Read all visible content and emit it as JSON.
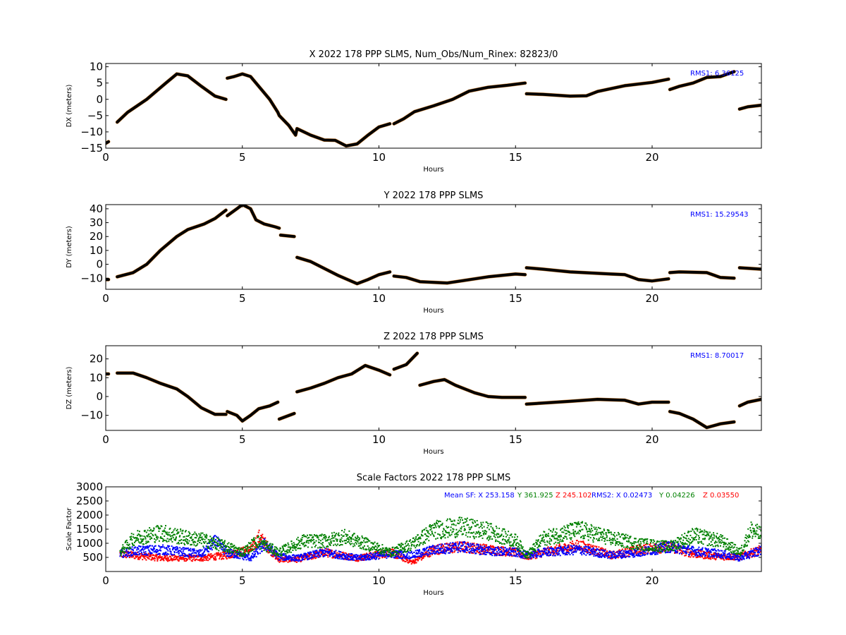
{
  "chart_data": [
    {
      "type": "scatter",
      "title": "X 2022 178 PPP  SLMS, Num_Obs/Num_Rinex: 82823/0",
      "xlabel": "Hours",
      "ylabel": "DX (meters)",
      "xlim": [
        0,
        24
      ],
      "ylim": [
        -15,
        11
      ],
      "xticks": [
        0,
        5,
        10,
        15,
        20
      ],
      "yticks": [
        -15,
        -10,
        -5,
        0,
        5,
        10
      ],
      "annotations": [
        {
          "text": "RMS1:  6.36125",
          "color": "#0000ff",
          "position": "top-right"
        }
      ],
      "series_colors": {
        "points": "#000000",
        "error": "#cc6600"
      },
      "segments": [
        [
          [
            0,
            -13.5
          ],
          [
            0.1,
            -13.0
          ]
        ],
        [
          [
            0.42,
            -7
          ],
          [
            0.8,
            -4
          ],
          [
            1.5,
            0
          ],
          [
            2.2,
            5
          ],
          [
            2.6,
            7.8
          ],
          [
            3.0,
            7.2
          ],
          [
            3.5,
            4
          ],
          [
            4.0,
            1
          ],
          [
            4.4,
            0
          ]
        ],
        [
          [
            4.45,
            6.5
          ],
          [
            4.7,
            7
          ],
          [
            5.0,
            7.8
          ],
          [
            5.3,
            7
          ],
          [
            5.6,
            4
          ],
          [
            6.0,
            0
          ],
          [
            6.3,
            -4
          ],
          [
            6.35,
            -5
          ],
          [
            6.7,
            -8
          ],
          [
            6.95,
            -11
          ],
          [
            7.0,
            -9
          ],
          [
            7.5,
            -11
          ],
          [
            8.0,
            -12.5
          ],
          [
            8.4,
            -12.6
          ],
          [
            8.8,
            -14.3
          ],
          [
            9.2,
            -13.7
          ],
          [
            9.6,
            -11
          ],
          [
            10.0,
            -8.5
          ],
          [
            10.4,
            -7.5
          ]
        ],
        [
          [
            10.55,
            -7.5
          ],
          [
            10.9,
            -6
          ],
          [
            11.3,
            -3.8
          ],
          [
            12,
            -2
          ],
          [
            12.7,
            0
          ],
          [
            13.3,
            2.5
          ],
          [
            14,
            3.7
          ],
          [
            14.7,
            4.3
          ],
          [
            15.35,
            5
          ]
        ],
        [
          [
            15.4,
            1.7
          ],
          [
            16,
            1.5
          ],
          [
            17,
            1
          ],
          [
            17.6,
            1.1
          ],
          [
            18,
            2.4
          ],
          [
            19,
            4.2
          ],
          [
            20,
            5.2
          ],
          [
            20.6,
            6.2
          ]
        ],
        [
          [
            20.65,
            3
          ],
          [
            21,
            4
          ],
          [
            21.5,
            5
          ],
          [
            22,
            6.7
          ],
          [
            22.5,
            7
          ],
          [
            23,
            8.5
          ]
        ],
        [
          [
            23.2,
            -3
          ],
          [
            23.5,
            -2.3
          ],
          [
            24,
            -1.8
          ]
        ]
      ]
    },
    {
      "type": "scatter",
      "title": "Y 2022 178 PPP  SLMS",
      "xlabel": "Hours",
      "ylabel": "DY (meters)",
      "xlim": [
        0,
        24
      ],
      "ylim": [
        -18,
        43
      ],
      "xticks": [
        0,
        5,
        10,
        15,
        20
      ],
      "yticks": [
        -10,
        0,
        10,
        20,
        30,
        40
      ],
      "annotations": [
        {
          "text": "RMS1: 15.29543",
          "color": "#0000ff",
          "position": "top-right"
        }
      ],
      "series_colors": {
        "points": "#000000",
        "error": "#cc6600"
      },
      "segments": [
        [
          [
            0,
            -11
          ],
          [
            0.1,
            -11
          ]
        ],
        [
          [
            0.42,
            -9
          ],
          [
            1,
            -6
          ],
          [
            1.5,
            0
          ],
          [
            2.0,
            10
          ],
          [
            2.6,
            20
          ],
          [
            3.0,
            25
          ],
          [
            3.6,
            29
          ],
          [
            4.0,
            33
          ],
          [
            4.4,
            39
          ]
        ],
        [
          [
            4.45,
            35
          ],
          [
            4.8,
            40
          ],
          [
            5.0,
            43
          ],
          [
            5.3,
            40
          ],
          [
            5.5,
            32
          ],
          [
            5.8,
            29
          ],
          [
            6.2,
            27
          ],
          [
            6.35,
            26
          ]
        ],
        [
          [
            6.4,
            21
          ],
          [
            6.9,
            20
          ]
        ],
        [
          [
            7.0,
            5
          ],
          [
            7.5,
            2
          ],
          [
            8,
            -3
          ],
          [
            8.5,
            -8
          ],
          [
            9.2,
            -14
          ],
          [
            9.6,
            -11
          ],
          [
            10.0,
            -7.5
          ],
          [
            10.4,
            -5.5
          ]
        ],
        [
          [
            10.55,
            -8.5
          ],
          [
            11,
            -9.5
          ],
          [
            11.5,
            -12.5
          ],
          [
            12.5,
            -13.5
          ],
          [
            13,
            -12
          ],
          [
            14,
            -9
          ],
          [
            15,
            -7
          ],
          [
            15.35,
            -7.5
          ]
        ],
        [
          [
            15.4,
            -2.5
          ],
          [
            16,
            -3.5
          ],
          [
            17,
            -5.5
          ],
          [
            18,
            -6.5
          ],
          [
            18.5,
            -7
          ],
          [
            19,
            -7.5
          ],
          [
            19.5,
            -11
          ],
          [
            20,
            -12
          ],
          [
            20.6,
            -10.5
          ]
        ],
        [
          [
            20.65,
            -6
          ],
          [
            21,
            -5.5
          ],
          [
            22,
            -6
          ],
          [
            22.5,
            -9.5
          ],
          [
            23,
            -10
          ]
        ],
        [
          [
            23.2,
            -2.5
          ],
          [
            24,
            -3.5
          ]
        ]
      ]
    },
    {
      "type": "scatter",
      "title": "Z 2022 178 PPP  SLMS",
      "xlabel": "Hours",
      "ylabel": "DZ (meters)",
      "xlim": [
        0,
        24
      ],
      "ylim": [
        -18,
        27
      ],
      "xticks": [
        0,
        5,
        10,
        15,
        20
      ],
      "yticks": [
        -10,
        0,
        10,
        20
      ],
      "annotations": [
        {
          "text": "RMS1:  8.70017",
          "color": "#0000ff",
          "position": "top-right"
        }
      ],
      "series_colors": {
        "points": "#000000",
        "error": "#cc6600"
      },
      "segments": [
        [
          [
            0,
            12
          ],
          [
            0.1,
            12
          ]
        ],
        [
          [
            0.42,
            12.5
          ],
          [
            1,
            12.5
          ],
          [
            1.5,
            10
          ],
          [
            2.0,
            7
          ],
          [
            2.6,
            4
          ],
          [
            3.0,
            0
          ],
          [
            3.5,
            -6
          ],
          [
            4.0,
            -9.5
          ],
          [
            4.4,
            -9.5
          ]
        ],
        [
          [
            4.45,
            -8
          ],
          [
            4.8,
            -10
          ],
          [
            5.0,
            -13
          ],
          [
            5.3,
            -10
          ],
          [
            5.6,
            -6.5
          ],
          [
            6.0,
            -5
          ],
          [
            6.3,
            -3
          ]
        ],
        [
          [
            6.35,
            -12
          ],
          [
            6.9,
            -9
          ]
        ],
        [
          [
            7.0,
            2.5
          ],
          [
            7.5,
            4.5
          ],
          [
            8,
            7
          ],
          [
            8.5,
            10
          ],
          [
            9.0,
            12
          ],
          [
            9.5,
            16.5
          ],
          [
            10.0,
            14
          ],
          [
            10.4,
            11.5
          ]
        ],
        [
          [
            10.55,
            14.5
          ],
          [
            11,
            17
          ],
          [
            11.4,
            23
          ]
        ],
        [
          [
            11.5,
            6
          ],
          [
            12,
            8
          ],
          [
            12.4,
            9
          ],
          [
            12.8,
            6
          ],
          [
            13.5,
            2
          ],
          [
            14,
            0
          ],
          [
            14.5,
            -0.5
          ],
          [
            15.35,
            -0.5
          ]
        ],
        [
          [
            15.4,
            -4
          ],
          [
            16,
            -3.5
          ],
          [
            17,
            -2.5
          ],
          [
            18,
            -1.5
          ],
          [
            19,
            -2
          ],
          [
            19.5,
            -4
          ],
          [
            20,
            -3
          ],
          [
            20.6,
            -3
          ]
        ],
        [
          [
            20.65,
            -8
          ],
          [
            21,
            -9
          ],
          [
            21.5,
            -12
          ],
          [
            22,
            -16.5
          ],
          [
            22.5,
            -14.5
          ],
          [
            23,
            -13.5
          ]
        ],
        [
          [
            23.2,
            -5
          ],
          [
            23.5,
            -3
          ],
          [
            24,
            -1.5
          ]
        ]
      ]
    },
    {
      "type": "scatter",
      "title": "Scale Factors 2022 178 PPP  SLMS",
      "xlabel": "Hours",
      "ylabel": "Scale Factor",
      "xlim": [
        0,
        24
      ],
      "ylim": [
        0,
        3000
      ],
      "xticks": [
        0,
        5,
        10,
        15,
        20
      ],
      "yticks": [
        500,
        1000,
        1500,
        2000,
        2500,
        3000
      ],
      "annotations": [
        {
          "text": "Mean SF: X 253.158",
          "color": "#0000ff"
        },
        {
          "text": "Y 361.925",
          "color": "#008000"
        },
        {
          "text": "Z 245.102",
          "color": "#ff0000"
        },
        {
          "text": "RMS2: X  0.02473",
          "color": "#0000ff"
        },
        {
          "text": "Y  0.04226",
          "color": "#008000"
        },
        {
          "text": "Z  0.03550",
          "color": "#ff0000"
        }
      ],
      "series": [
        {
          "color": "#ff0000",
          "x": [
            0.5,
            2,
            3.5,
            4.4,
            5.3,
            5.6,
            6.3,
            7,
            8,
            9.2,
            10.4,
            11.2,
            12,
            13,
            14,
            15,
            15.4,
            16,
            17.3,
            18.5,
            19.5,
            20.6,
            21.5,
            22.5,
            23.2,
            24
          ],
          "y": [
            650,
            500,
            500,
            600,
            800,
            1250,
            450,
            450,
            700,
            500,
            700,
            350,
            800,
            900,
            800,
            700,
            550,
            700,
            950,
            600,
            800,
            900,
            650,
            550,
            550,
            800
          ]
        },
        {
          "color": "#0000ff",
          "x": [
            0.5,
            1,
            2,
            3,
            3.5,
            4,
            4.4,
            5.3,
            5.8,
            6.3,
            7,
            8,
            9.2,
            10.4,
            11.2,
            12,
            13,
            14,
            15,
            15.4,
            16,
            17.3,
            18.5,
            19.5,
            20.6,
            21.5,
            22.5,
            23.2,
            24
          ],
          "y": [
            650,
            750,
            800,
            700,
            650,
            1100,
            700,
            500,
            1000,
            550,
            500,
            700,
            500,
            650,
            600,
            800,
            900,
            750,
            700,
            600,
            700,
            800,
            600,
            700,
            900,
            750,
            650,
            500,
            800
          ]
        },
        {
          "color": "#008000",
          "x": [
            0.5,
            1,
            2,
            3,
            3.5,
            4.4,
            5.0,
            5.5,
            6.3,
            7.2,
            8,
            8.7,
            9.2,
            10.4,
            11.2,
            12,
            13,
            14,
            15,
            15.4,
            16,
            17.3,
            18.5,
            19.5,
            20.6,
            21.5,
            22.5,
            23.2,
            23.6,
            24
          ],
          "y": [
            700,
            1200,
            1400,
            1200,
            1150,
            900,
            700,
            1100,
            700,
            1100,
            1100,
            1250,
            1100,
            700,
            1000,
            1500,
            1600,
            1450,
            1100,
            600,
            1200,
            1500,
            1200,
            1000,
            900,
            1300,
            1100,
            700,
            1500,
            1300
          ]
        }
      ]
    }
  ]
}
